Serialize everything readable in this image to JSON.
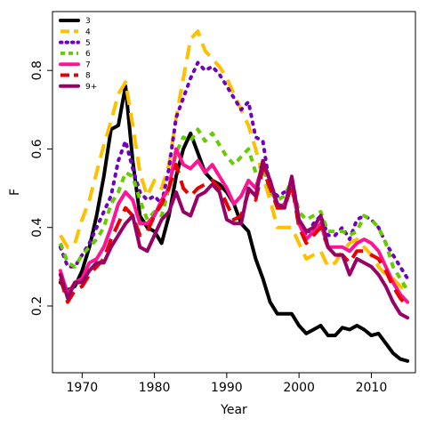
{
  "chart_data": {
    "type": "line",
    "title": "",
    "xlabel": "Year",
    "ylabel": "F",
    "xlim": [
      1965.9,
      2016.1
    ],
    "ylim": [
      0.03,
      0.95
    ],
    "x_ticks": [
      1970,
      1980,
      1990,
      2000,
      2010
    ],
    "y_ticks": [
      0.2,
      0.4,
      0.6,
      0.8
    ],
    "grid": false,
    "legend_position": "top-left",
    "x": [
      1967,
      1968,
      1969,
      1970,
      1971,
      1972,
      1973,
      1974,
      1975,
      1976,
      1977,
      1978,
      1979,
      1980,
      1981,
      1982,
      1983,
      1984,
      1985,
      1986,
      1987,
      1988,
      1989,
      1990,
      1991,
      1992,
      1993,
      1994,
      1995,
      1996,
      1997,
      1998,
      1999,
      2000,
      2001,
      2002,
      2003,
      2004,
      2005,
      2006,
      2007,
      2008,
      2009,
      2010,
      2011,
      2012,
      2013,
      2014,
      2015
    ],
    "series": [
      {
        "name": "3",
        "color": "#000000",
        "dash": "solid",
        "values": [
          0.26,
          0.24,
          0.25,
          0.29,
          0.35,
          0.43,
          0.53,
          0.65,
          0.66,
          0.76,
          0.57,
          0.43,
          0.4,
          0.39,
          0.36,
          0.43,
          0.53,
          0.6,
          0.64,
          0.59,
          0.54,
          0.52,
          0.51,
          0.49,
          0.46,
          0.41,
          0.39,
          0.32,
          0.27,
          0.21,
          0.18,
          0.18,
          0.18,
          0.15,
          0.13,
          0.14,
          0.15,
          0.125,
          0.125,
          0.145,
          0.14,
          0.15,
          0.14,
          0.125,
          0.13,
          0.105,
          0.08,
          0.065,
          0.06
        ]
      },
      {
        "name": "4",
        "color": "#FFC000",
        "dash": "long",
        "values": [
          0.38,
          0.35,
          0.36,
          0.42,
          0.47,
          0.54,
          0.61,
          0.67,
          0.74,
          0.77,
          0.66,
          0.54,
          0.48,
          0.52,
          0.5,
          0.56,
          0.68,
          0.78,
          0.88,
          0.9,
          0.85,
          0.83,
          0.81,
          0.78,
          0.74,
          0.7,
          0.66,
          0.6,
          0.53,
          0.47,
          0.4,
          0.4,
          0.4,
          0.36,
          0.32,
          0.33,
          0.34,
          0.3,
          0.31,
          0.34,
          0.36,
          0.37,
          0.35,
          0.33,
          0.3,
          0.28,
          0.27,
          0.25,
          0.24
        ]
      },
      {
        "name": "5",
        "color": "#7000C0",
        "dash": "dot",
        "values": [
          0.35,
          0.3,
          0.3,
          0.33,
          0.36,
          0.4,
          0.44,
          0.48,
          0.57,
          0.62,
          0.55,
          0.49,
          0.47,
          0.48,
          0.46,
          0.55,
          0.68,
          0.73,
          0.78,
          0.82,
          0.8,
          0.81,
          0.79,
          0.76,
          0.73,
          0.7,
          0.72,
          0.63,
          0.62,
          0.5,
          0.48,
          0.49,
          0.5,
          0.42,
          0.38,
          0.41,
          0.43,
          0.38,
          0.38,
          0.4,
          0.37,
          0.42,
          0.43,
          0.42,
          0.4,
          0.36,
          0.33,
          0.3,
          0.27
        ]
      },
      {
        "name": "6",
        "color": "#66CC00",
        "dash": "short",
        "values": [
          0.36,
          0.31,
          0.3,
          0.33,
          0.35,
          0.37,
          0.4,
          0.46,
          0.49,
          0.54,
          0.53,
          0.47,
          0.42,
          0.44,
          0.43,
          0.5,
          0.59,
          0.63,
          0.62,
          0.65,
          0.62,
          0.64,
          0.61,
          0.58,
          0.56,
          0.58,
          0.6,
          0.54,
          0.56,
          0.49,
          0.47,
          0.48,
          0.52,
          0.44,
          0.42,
          0.43,
          0.44,
          0.39,
          0.39,
          0.39,
          0.38,
          0.39,
          0.43,
          0.42,
          0.4,
          0.36,
          0.3,
          0.27,
          0.24
        ]
      },
      {
        "name": "7",
        "color": "#FF1493",
        "dash": "solid",
        "values": [
          0.29,
          0.23,
          0.26,
          0.27,
          0.31,
          0.32,
          0.35,
          0.4,
          0.46,
          0.49,
          0.47,
          0.41,
          0.41,
          0.43,
          0.47,
          0.5,
          0.6,
          0.56,
          0.55,
          0.57,
          0.54,
          0.56,
          0.53,
          0.5,
          0.46,
          0.48,
          0.52,
          0.5,
          0.56,
          0.52,
          0.45,
          0.46,
          0.51,
          0.41,
          0.37,
          0.39,
          0.41,
          0.35,
          0.35,
          0.35,
          0.34,
          0.36,
          0.37,
          0.36,
          0.34,
          0.3,
          0.26,
          0.23,
          0.21
        ]
      },
      {
        "name": "8",
        "color": "#E60000",
        "dash": "long",
        "values": [
          0.27,
          0.21,
          0.24,
          0.25,
          0.28,
          0.3,
          0.32,
          0.37,
          0.41,
          0.45,
          0.43,
          0.38,
          0.39,
          0.43,
          0.46,
          0.5,
          0.56,
          0.5,
          0.48,
          0.5,
          0.51,
          0.52,
          0.5,
          0.46,
          0.42,
          0.43,
          0.49,
          0.47,
          0.55,
          0.5,
          0.45,
          0.45,
          0.51,
          0.4,
          0.36,
          0.38,
          0.4,
          0.35,
          0.33,
          0.33,
          0.31,
          0.34,
          0.34,
          0.33,
          0.32,
          0.29,
          0.25,
          0.22,
          0.2
        ]
      },
      {
        "name": "9+",
        "color": "#990066",
        "dash": "solid",
        "values": [
          0.28,
          0.22,
          0.26,
          0.26,
          0.29,
          0.31,
          0.31,
          0.35,
          0.38,
          0.41,
          0.43,
          0.35,
          0.34,
          0.38,
          0.42,
          0.44,
          0.49,
          0.44,
          0.43,
          0.48,
          0.49,
          0.51,
          0.49,
          0.42,
          0.41,
          0.41,
          0.5,
          0.48,
          0.57,
          0.52,
          0.46,
          0.45,
          0.53,
          0.42,
          0.39,
          0.4,
          0.43,
          0.35,
          0.33,
          0.33,
          0.28,
          0.32,
          0.31,
          0.3,
          0.28,
          0.25,
          0.21,
          0.18,
          0.17
        ]
      }
    ]
  }
}
